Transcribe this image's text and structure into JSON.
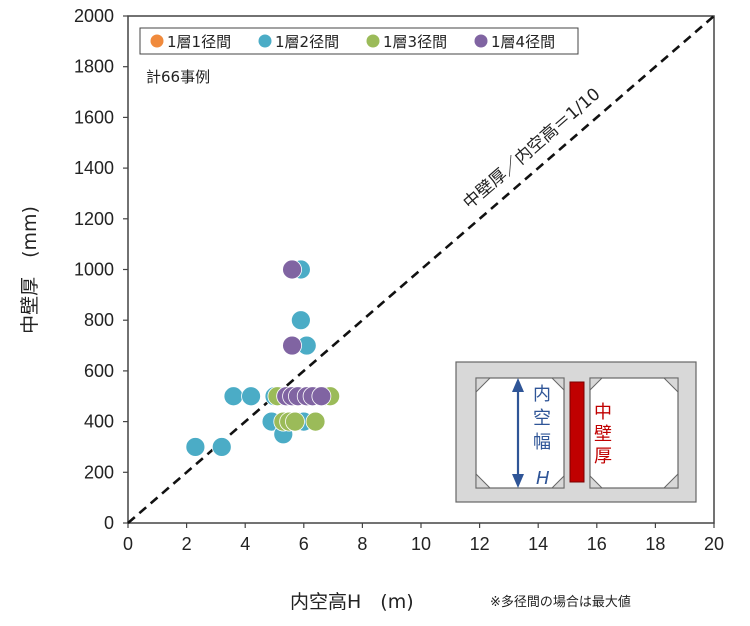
{
  "chart_data": {
    "type": "scatter",
    "xlabel": "内空高H　(m)",
    "ylabel": "中壁厚　(mm)",
    "xlim": [
      0,
      20
    ],
    "ylim": [
      0,
      2000
    ],
    "x_ticks": [
      "0",
      "2",
      "4",
      "6",
      "8",
      "10",
      "12",
      "14",
      "16",
      "18",
      "20"
    ],
    "y_ticks": [
      "0",
      "200",
      "400",
      "600",
      "800",
      "1000",
      "1200",
      "1400",
      "1600",
      "1800",
      "2000"
    ],
    "grid": false,
    "legend_position": "top-left",
    "count_label": "計66事例",
    "reference_line": {
      "label": "中壁厚／内空高＝1/10",
      "slope": 100
    },
    "note": "※多径間の場合は最大値",
    "series": [
      {
        "name": "1層1径間",
        "color": "#f08a3c",
        "points": []
      },
      {
        "name": "1層2径間",
        "color": "#4bacc6",
        "points": [
          [
            2.3,
            300
          ],
          [
            3.2,
            300
          ],
          [
            3.6,
            500
          ],
          [
            4.2,
            500
          ],
          [
            4.9,
            400
          ],
          [
            5.0,
            500
          ],
          [
            5.2,
            500
          ],
          [
            5.3,
            350
          ],
          [
            5.6,
            500
          ],
          [
            5.8,
            400
          ],
          [
            6.0,
            400
          ],
          [
            6.1,
            500
          ],
          [
            5.6,
            1000
          ],
          [
            5.9,
            1000
          ],
          [
            5.9,
            800
          ],
          [
            6.1,
            700
          ]
        ]
      },
      {
        "name": "1層3径間",
        "color": "#9bbb59",
        "points": [
          [
            5.3,
            400
          ],
          [
            5.5,
            400
          ],
          [
            5.7,
            400
          ],
          [
            6.4,
            400
          ],
          [
            5.1,
            500
          ],
          [
            5.4,
            500
          ],
          [
            6.7,
            500
          ],
          [
            6.9,
            500
          ]
        ]
      },
      {
        "name": "1層4径間",
        "color": "#8064a2",
        "points": [
          [
            5.6,
            1000
          ],
          [
            5.6,
            700
          ],
          [
            5.4,
            500
          ],
          [
            5.6,
            500
          ],
          [
            5.8,
            500
          ],
          [
            6.1,
            500
          ],
          [
            6.3,
            500
          ],
          [
            6.6,
            500
          ]
        ]
      }
    ]
  },
  "inset": {
    "height_label": "内空幅",
    "height_symbol": "H",
    "wall_label": "中壁厚"
  }
}
